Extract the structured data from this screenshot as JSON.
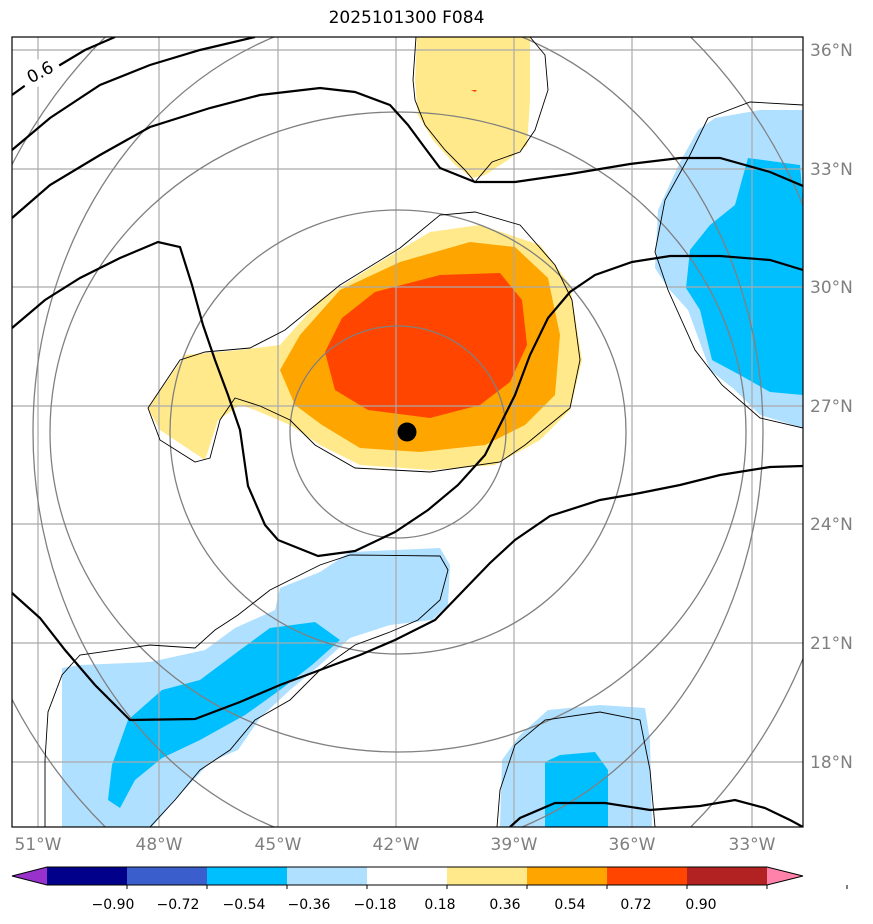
{
  "title": "2025101300 F084",
  "map": {
    "lon_labels": [
      "51°W",
      "48°W",
      "45°W",
      "42°W",
      "39°W",
      "36°W",
      "33°W"
    ],
    "lat_labels": [
      "36°N",
      "33°N",
      "30°N",
      "27°N",
      "24°N",
      "21°N",
      "18°N"
    ],
    "contour_label": "0.6",
    "center_marker": "storm-center"
  },
  "colorbar": {
    "ticks": [
      "−0.90",
      "−0.72",
      "−0.54",
      "−0.36",
      "−0.18",
      "0.18",
      "0.36",
      "0.54",
      "0.72",
      "0.90"
    ],
    "colors": [
      "#9932cc",
      "#00008b",
      "#3a5fcd",
      "#00bfff",
      "#b0e0ff",
      "#ffffff",
      "#ffe98a",
      "#ffa500",
      "#ff4500",
      "#b22222",
      "#ff82ab"
    ]
  }
}
